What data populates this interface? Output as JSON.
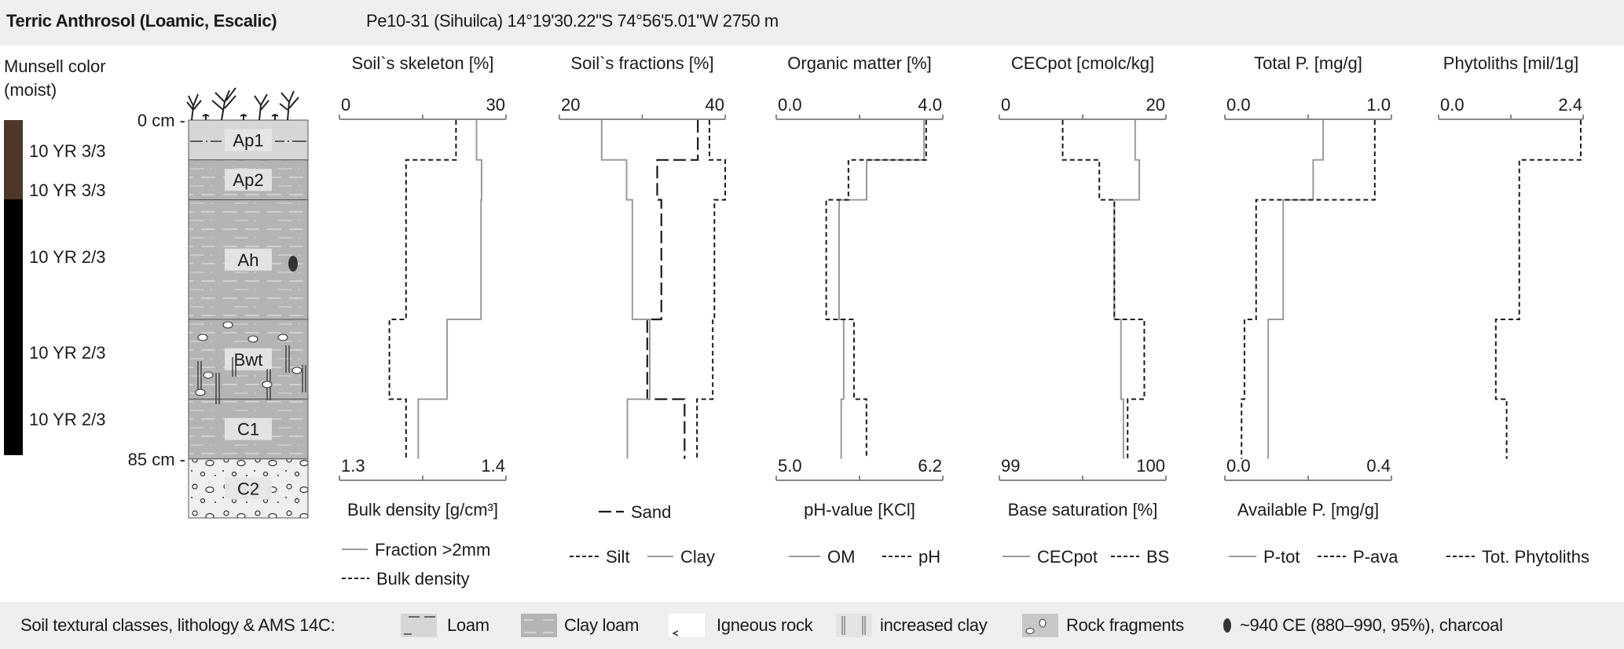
{
  "header": {
    "title": "Terric Anthrosol (Loamic, Escalic)",
    "subtitle": "Pe10-31 (Sihuilca) 14°19'30.22\"S 74°56'5.01\"W 2750 m"
  },
  "munsell": {
    "title_line1": "Munsell color",
    "title_line2": "(moist)",
    "labels": [
      "10 YR 3/3",
      "10 YR 3/3",
      "10 YR 2/3",
      "10 YR 2/3",
      "10 YR 2/3"
    ],
    "colors": {
      "brown": "#4e3628",
      "black": "#000000"
    }
  },
  "profile": {
    "top_label": "0 cm -",
    "bottom_label": "85 cm -",
    "horizons": [
      {
        "name": "Ap1",
        "from": 0,
        "to": 10,
        "texture": "loam"
      },
      {
        "name": "Ap2",
        "from": 10,
        "to": 20,
        "texture": "clay loam"
      },
      {
        "name": "Ah",
        "from": 20,
        "to": 50,
        "texture": "clay loam"
      },
      {
        "name": "Bwt",
        "from": 50,
        "to": 70,
        "texture": "clay loam"
      },
      {
        "name": "C1",
        "from": 70,
        "to": 85,
        "texture": "clay loam"
      },
      {
        "name": "C2",
        "from": 85,
        "to": null,
        "texture": "rock fragments"
      }
    ]
  },
  "chart_data": [
    {
      "type": "line",
      "title": "Soil`s skeleton [%]",
      "top_axis": {
        "range": [
          0,
          30
        ],
        "labels": [
          "0",
          "30"
        ]
      },
      "bottom_axis": {
        "range": [
          1.3,
          1.4
        ],
        "labels": [
          "1.3",
          "1.4"
        ],
        "title": "Bulk density [g/cm³]"
      },
      "depth_intervals_cm": [
        [
          0,
          10
        ],
        [
          10,
          20
        ],
        [
          20,
          50
        ],
        [
          50,
          70
        ],
        [
          70,
          85
        ]
      ],
      "series": [
        {
          "name": "Fraction >2mm",
          "axis": "top",
          "style": "solid",
          "values": [
            24.7,
            25.6,
            25.5,
            19.4,
            14.2
          ]
        },
        {
          "name": "Bulk density",
          "axis": "bottom",
          "style": "dashed",
          "values": [
            1.37,
            1.34,
            1.34,
            1.33,
            1.34
          ]
        }
      ]
    },
    {
      "type": "line",
      "title": "Soil`s fractions [%]",
      "top_axis": {
        "range": [
          20,
          40
        ],
        "labels": [
          "20",
          "40"
        ]
      },
      "depth_intervals_cm": [
        [
          0,
          10
        ],
        [
          10,
          20
        ],
        [
          20,
          50
        ],
        [
          50,
          70
        ],
        [
          70,
          85
        ]
      ],
      "series": [
        {
          "name": "Sand",
          "axis": "top",
          "style": "longdash",
          "values": [
            36.7,
            31.8,
            32.3,
            30.6,
            35.1
          ]
        },
        {
          "name": "Silt",
          "axis": "top",
          "style": "dashed",
          "values": [
            38.1,
            40.0,
            38.7,
            38.5,
            36.6
          ]
        },
        {
          "name": "Clay",
          "axis": "top",
          "style": "solid",
          "values": [
            25.1,
            28.1,
            28.8,
            30.9,
            28.2
          ]
        }
      ]
    },
    {
      "type": "line",
      "title": "Organic matter [%]",
      "top_axis": {
        "range": [
          0,
          4
        ],
        "labels": [
          "0.0",
          "4.0"
        ]
      },
      "bottom_axis": {
        "range": [
          5.0,
          6.2
        ],
        "labels": [
          "5.0",
          "6.2"
        ],
        "title": "pH-value [KCl]"
      },
      "depth_intervals_cm": [
        [
          0,
          10
        ],
        [
          10,
          20
        ],
        [
          20,
          50
        ],
        [
          50,
          70
        ],
        [
          70,
          85
        ]
      ],
      "series": [
        {
          "name": "OM",
          "axis": "top",
          "style": "solid",
          "values": [
            3.55,
            2.17,
            1.51,
            1.62,
            1.56
          ]
        },
        {
          "name": "pH",
          "axis": "bottom",
          "style": "dashed",
          "values": [
            6.08,
            5.52,
            5.36,
            5.56,
            5.65
          ]
        }
      ]
    },
    {
      "type": "line",
      "title": "CECpot [cmolc/kg]",
      "top_axis": {
        "range": [
          0,
          20
        ],
        "labels": [
          "0",
          "20"
        ]
      },
      "bottom_axis": {
        "range": [
          99,
          100
        ],
        "labels": [
          "99",
          "100"
        ],
        "title": "Base saturation [%]"
      },
      "depth_intervals_cm": [
        [
          0,
          10
        ],
        [
          10,
          20
        ],
        [
          20,
          50
        ],
        [
          50,
          70
        ],
        [
          70,
          85
        ]
      ],
      "series": [
        {
          "name": "CECpot",
          "axis": "top",
          "style": "solid",
          "values": [
            16.3,
            16.8,
            13.8,
            14.6,
            14.9
          ]
        },
        {
          "name": "BS",
          "axis": "bottom",
          "style": "dashed",
          "values": [
            99.38,
            99.6,
            99.69,
            99.87,
            99.77
          ]
        }
      ]
    },
    {
      "type": "line",
      "title": "Total P. [mg/g]",
      "top_axis": {
        "range": [
          0,
          1
        ],
        "labels": [
          "0.0",
          "1.0"
        ]
      },
      "bottom_axis": {
        "range": [
          0,
          0.4
        ],
        "labels": [
          "0.0",
          "0.4"
        ],
        "title": "Available P. [mg/g]"
      },
      "depth_intervals_cm": [
        [
          0,
          10
        ],
        [
          10,
          20
        ],
        [
          20,
          50
        ],
        [
          50,
          70
        ],
        [
          70,
          85
        ]
      ],
      "series": [
        {
          "name": "P-tot",
          "axis": "top",
          "style": "solid",
          "values": [
            0.59,
            0.53,
            0.35,
            0.26,
            0.26
          ]
        },
        {
          "name": "P-ava",
          "axis": "bottom",
          "style": "dashed",
          "values": [
            0.36,
            0.36,
            0.075,
            0.047,
            0.04
          ]
        }
      ]
    },
    {
      "type": "line",
      "title": "Phytoliths [mil/1g]",
      "top_axis": {
        "range": [
          0,
          2.4
        ],
        "labels": [
          "0.0",
          "2.4"
        ]
      },
      "depth_intervals_cm": [
        [
          0,
          10
        ],
        [
          10,
          20
        ],
        [
          20,
          50
        ],
        [
          50,
          70
        ],
        [
          70,
          85
        ]
      ],
      "series": [
        {
          "name": "Tot. Phytoliths",
          "axis": "top",
          "style": "dashed",
          "values": [
            2.36,
            1.34,
            1.34,
            0.95,
            1.13
          ]
        }
      ]
    }
  ],
  "footer": {
    "label": "Soil textural classes, lithology & AMS 14C:",
    "items": [
      {
        "label": "Loam",
        "icon": "loam-swatch"
      },
      {
        "label": "Clay loam",
        "icon": "clay-loam-swatch"
      },
      {
        "label": "Igneous rock",
        "icon": "igneous-rock-swatch"
      },
      {
        "label": "increased clay",
        "icon": "increased-clay-swatch"
      },
      {
        "label": "Rock fragments",
        "icon": "rock-fragments-swatch"
      },
      {
        "label": "~940 CE (880–990, 95%), charcoal",
        "icon": "charcoal-icon"
      }
    ]
  },
  "colors": {
    "header_bg": "#efefef",
    "loam": "#d6d6d6",
    "clay_loam": "#b4b4b4",
    "rock": "#efefef",
    "series_gray": "#9a9a9a",
    "series_black": "#1a1a1a"
  }
}
